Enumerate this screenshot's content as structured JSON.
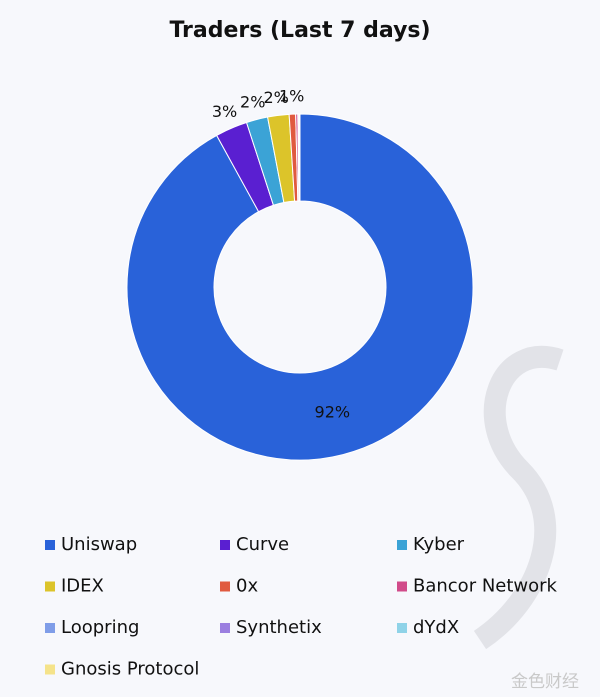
{
  "chart_data": {
    "type": "pie",
    "title": "Traders (Last 7 days)",
    "categories": [
      "Uniswap",
      "Curve",
      "Kyber",
      "IDEX",
      "0x",
      "Bancor Network",
      "Loopring",
      "Synthetix",
      "dYdX",
      "Gnosis Protocol"
    ],
    "values": [
      92,
      3,
      2,
      2,
      0.6,
      0.2,
      0.1,
      0.05,
      0.03,
      0.02
    ],
    "value_labels": [
      "92%",
      "3%",
      "2%",
      "2%",
      "1%",
      null,
      null,
      null,
      null,
      null
    ],
    "colors": [
      "#2962d9",
      "#5a1fd1",
      "#3ba3d6",
      "#dcc42a",
      "#e05a3f",
      "#d14b8a",
      "#7f9de8",
      "#9b7fe0",
      "#8fd3e8",
      "#f5e38a"
    ],
    "donut": true
  },
  "watermark": "金色财经"
}
